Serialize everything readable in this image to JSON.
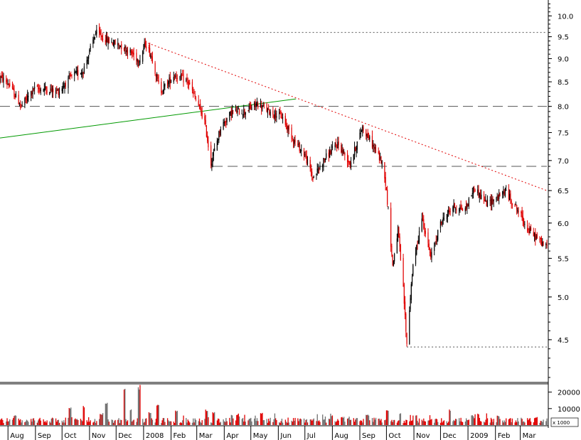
{
  "chart_data": {
    "type": "candlestick",
    "price_axis": {
      "scale": "log",
      "ylim": [
        4.05,
        10.4
      ],
      "ticks": [
        "10.0",
        "9.5",
        "9.0",
        "8.5",
        "8.0",
        "7.5",
        "7.0",
        "6.5",
        "6.0",
        "5.5",
        "5.0",
        "4.5"
      ]
    },
    "volume_axis": {
      "ticks": [
        "20000",
        "10000"
      ],
      "unit_label": "x 1000",
      "max": 25000
    },
    "time_axis": {
      "start": "2007-07-23",
      "end": "2009-03-31",
      "labels": [
        {
          "label": "Aug",
          "date": "2007-08-01"
        },
        {
          "label": "Sep",
          "date": "2007-09-01"
        },
        {
          "label": "Oct",
          "date": "2007-10-01"
        },
        {
          "label": "Nov",
          "date": "2007-11-01"
        },
        {
          "label": "Dec",
          "date": "2007-12-01"
        },
        {
          "label": "2008",
          "date": "2008-01-01"
        },
        {
          "label": "Feb",
          "date": "2008-02-01"
        },
        {
          "label": "Mar",
          "date": "2008-03-01"
        },
        {
          "label": "Apr",
          "date": "2008-04-01"
        },
        {
          "label": "May",
          "date": "2008-05-01"
        },
        {
          "label": "Jun",
          "date": "2008-06-01"
        },
        {
          "label": "Jul",
          "date": "2008-07-01"
        },
        {
          "label": "Aug",
          "date": "2008-08-01"
        },
        {
          "label": "Sep",
          "date": "2008-09-01"
        },
        {
          "label": "Oct",
          "date": "2008-10-01"
        },
        {
          "label": "Nov",
          "date": "2008-11-01"
        },
        {
          "label": "Dec",
          "date": "2008-12-01"
        },
        {
          "label": "2009",
          "date": "2009-01-01"
        },
        {
          "label": "Feb",
          "date": "2009-02-01"
        },
        {
          "label": "Mar",
          "date": "2009-03-01"
        }
      ]
    },
    "price_path": [
      [
        "2007-07-23",
        8.6
      ],
      [
        "2007-08-02",
        8.45
      ],
      [
        "2007-08-16",
        8.0
      ],
      [
        "2007-08-30",
        8.35
      ],
      [
        "2007-09-13",
        8.35
      ],
      [
        "2007-09-27",
        8.3
      ],
      [
        "2007-10-11",
        8.6
      ],
      [
        "2007-10-25",
        8.75
      ],
      [
        "2007-11-01",
        9.15
      ],
      [
        "2007-11-08",
        9.6
      ],
      [
        "2007-11-22",
        9.4
      ],
      [
        "2007-12-06",
        9.3
      ],
      [
        "2007-12-20",
        9.1
      ],
      [
        "2007-12-27",
        8.95
      ],
      [
        "2008-01-03",
        9.35
      ],
      [
        "2008-01-10",
        9.05
      ],
      [
        "2008-01-20",
        8.3
      ],
      [
        "2008-02-05",
        8.65
      ],
      [
        "2008-02-20",
        8.5
      ],
      [
        "2008-03-01",
        8.1
      ],
      [
        "2008-03-10",
        7.7
      ],
      [
        "2008-03-17",
        6.95
      ],
      [
        "2008-03-28",
        7.6
      ],
      [
        "2008-04-10",
        7.9
      ],
      [
        "2008-04-24",
        7.9
      ],
      [
        "2008-05-08",
        8.05
      ],
      [
        "2008-05-22",
        7.9
      ],
      [
        "2008-06-05",
        7.8
      ],
      [
        "2008-06-19",
        7.35
      ],
      [
        "2008-07-01",
        7.1
      ],
      [
        "2008-07-10",
        6.7
      ],
      [
        "2008-07-24",
        7.05
      ],
      [
        "2008-08-07",
        7.3
      ],
      [
        "2008-08-21",
        6.95
      ],
      [
        "2008-09-04",
        7.6
      ],
      [
        "2008-09-18",
        7.2
      ],
      [
        "2008-09-28",
        6.9
      ],
      [
        "2008-10-03",
        6.2
      ],
      [
        "2008-10-08",
        5.4
      ],
      [
        "2008-10-14",
        5.9
      ],
      [
        "2008-10-20",
        5.1
      ],
      [
        "2008-10-24",
        4.45
      ],
      [
        "2008-10-30",
        5.3
      ],
      [
        "2008-11-10",
        6.1
      ],
      [
        "2008-11-20",
        5.5
      ],
      [
        "2008-12-01",
        6.0
      ],
      [
        "2008-12-15",
        6.25
      ],
      [
        "2008-12-29",
        6.2
      ],
      [
        "2009-01-08",
        6.55
      ],
      [
        "2009-01-22",
        6.3
      ],
      [
        "2009-02-05",
        6.4
      ],
      [
        "2009-02-12",
        6.5
      ],
      [
        "2009-02-26",
        6.2
      ],
      [
        "2009-03-10",
        5.9
      ],
      [
        "2009-03-31",
        5.65
      ]
    ],
    "volume_spikes": [
      [
        "2007-08-09",
        6000
      ],
      [
        "2007-09-20",
        4500
      ],
      [
        "2007-10-10",
        11000
      ],
      [
        "2007-10-26",
        12000
      ],
      [
        "2007-11-14",
        7000
      ],
      [
        "2007-11-20",
        13500
      ],
      [
        "2007-12-10",
        22000
      ],
      [
        "2007-12-17",
        9500
      ],
      [
        "2007-12-27",
        25000
      ],
      [
        "2008-01-08",
        8000
      ],
      [
        "2008-01-17",
        12500
      ],
      [
        "2008-02-07",
        9000
      ],
      [
        "2008-03-12",
        10000
      ],
      [
        "2008-03-20",
        8000
      ],
      [
        "2008-04-16",
        7000
      ],
      [
        "2008-05-13",
        7500
      ],
      [
        "2008-08-12",
        5000
      ],
      [
        "2008-09-10",
        6500
      ],
      [
        "2008-10-02",
        9500
      ],
      [
        "2008-10-17",
        8000
      ],
      [
        "2008-11-03",
        6500
      ],
      [
        "2008-12-12",
        9500
      ],
      [
        "2009-01-06",
        6000
      ],
      [
        "2009-02-04",
        6000
      ],
      [
        "2009-03-19",
        5000
      ]
    ],
    "reference_lines": [
      {
        "kind": "dotted-horizontal",
        "color": "#555555",
        "from": "2007-11-08",
        "to": "2009-03-31",
        "value": 9.6
      },
      {
        "kind": "dashed-horizontal",
        "color": "#555555",
        "from": "2007-07-23",
        "to": "2009-03-31",
        "value": 8.0
      },
      {
        "kind": "dashed-horizontal",
        "color": "#555555",
        "from": "2008-03-19",
        "to": "2009-03-31",
        "value": 6.9
      },
      {
        "kind": "dotted-horizontal",
        "color": "#555555",
        "from": "2008-10-24",
        "to": "2009-03-31",
        "value": 4.42
      },
      {
        "kind": "dotted-trendline",
        "color": "#e00000",
        "from": [
          "2008-01-06",
          9.35
        ],
        "to": [
          "2009-03-31",
          6.5
        ]
      },
      {
        "kind": "trendline",
        "color": "#009900",
        "from": [
          "2007-07-23",
          7.4
        ],
        "to": [
          "2008-06-21",
          8.15
        ]
      }
    ],
    "colors": {
      "up": "#000000",
      "down": "#e00000",
      "volume_up": "#707070",
      "volume_down": "#e00000"
    }
  }
}
